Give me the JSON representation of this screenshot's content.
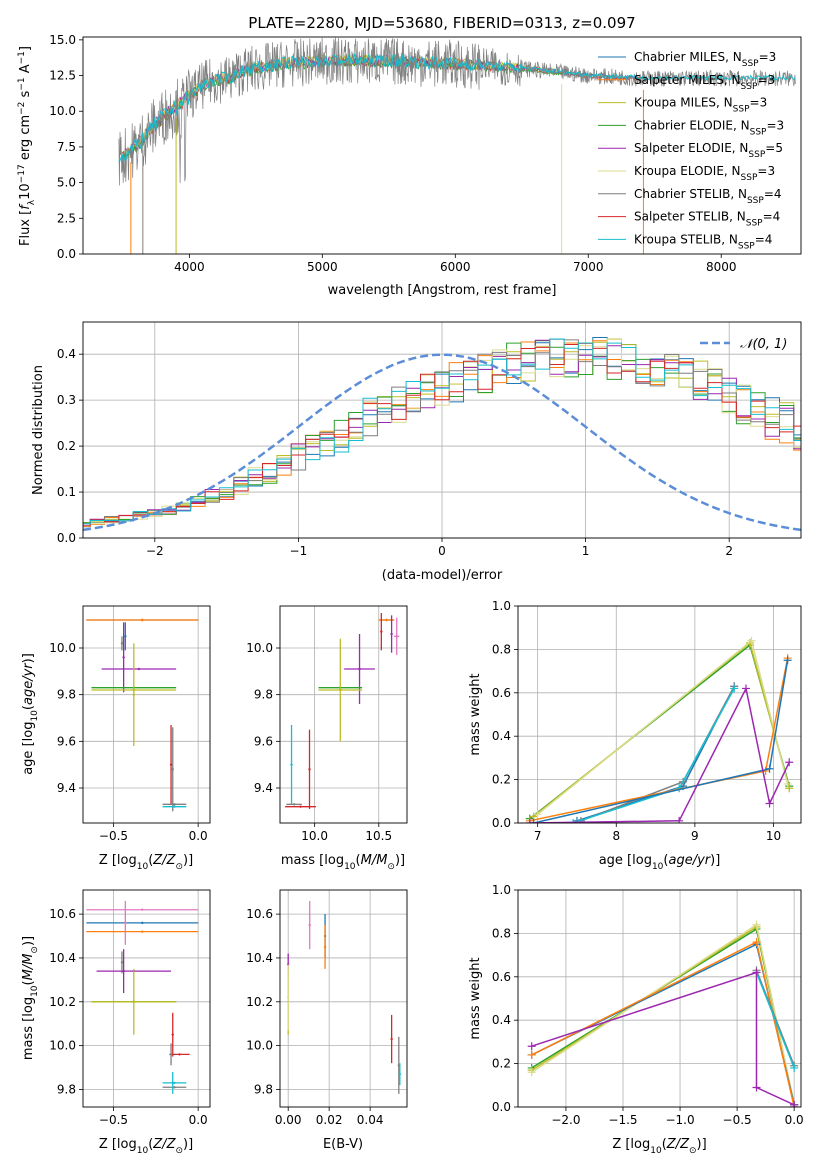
{
  "figure_title": "PLATE=2280, MJD=53680, FIBERID=0313, z=0.097",
  "colors": {
    "chabrier_miles": "#1f77b4",
    "salpeter_miles": "#ff7f0e",
    "kroupa_miles": "#bcbd22",
    "chabrier_elodie": "#2ca02c",
    "salpeter_elodie": "#9c27b0",
    "kroupa_elodie": "#dbdb8d",
    "chabrier_stelib": "#7f7f7f",
    "salpeter_stelib": "#d62728",
    "kroupa_stelib": "#17becf",
    "gaussian": "#5b8dd9"
  },
  "chart_data": [
    {
      "id": "spectrum",
      "type": "line",
      "title": "PLATE=2280, MJD=53680, FIBERID=0313, z=0.097",
      "xlabel": "wavelength [Angstrom, rest frame]",
      "ylabel": "Flux [f_λ 10^-17 erg cm^-2 s^-1 A^-1]",
      "xlim": [
        3200,
        8600
      ],
      "ylim": [
        0,
        15.2
      ],
      "xticks": [
        4000,
        5000,
        6000,
        7000,
        8000
      ],
      "yticks": [
        0.0,
        2.5,
        5.0,
        7.5,
        10.0,
        12.5,
        15.0
      ],
      "legend_position": "right",
      "legend": [
        "Chabrier MILES, N_SSP=3",
        "Salpeter MILES, N_SSP=3",
        "Kroupa MILES, N_SSP=3",
        "Chabrier ELODIE, N_SSP=3",
        "Salpeter ELODIE, N_SSP=5",
        "Kroupa ELODIE, N_SSP=3",
        "Chabrier STELIB, N_SSP=4",
        "Salpeter STELIB, N_SSP=4",
        "Kroupa STELIB, N_SSP=4"
      ],
      "model_continuum": {
        "x": [
          3500,
          3600,
          3700,
          3800,
          3900,
          4000,
          4100,
          4200,
          4300,
          4400,
          4500,
          4700,
          5000,
          5500,
          6000,
          6500,
          7000,
          7400
        ],
        "y": [
          6.8,
          7.5,
          8.6,
          9.6,
          10.3,
          11.0,
          11.8,
          12.2,
          12.3,
          12.8,
          13.0,
          13.3,
          13.5,
          13.5,
          13.3,
          13.0,
          12.5,
          12.3
        ]
      },
      "data_noise_amplitude": 1.7
    },
    {
      "id": "residuals",
      "type": "line",
      "xlabel": "(data-model)/error",
      "ylabel": "Normed distribution",
      "xlim": [
        -2.5,
        2.5
      ],
      "ylim": [
        0,
        0.47
      ],
      "xticks": [
        -2,
        -1,
        0,
        1,
        2
      ],
      "yticks": [
        0.0,
        0.1,
        0.2,
        0.3,
        0.4
      ],
      "grid": true,
      "legend_position": "top-right",
      "gaussian_label": "𝒩(0, 1)",
      "bin_width": 0.1,
      "envelope": [
        0.03,
        0.035,
        0.04,
        0.045,
        0.05,
        0.055,
        0.06,
        0.07,
        0.08,
        0.09,
        0.1,
        0.115,
        0.13,
        0.14,
        0.16,
        0.175,
        0.19,
        0.21,
        0.22,
        0.24,
        0.26,
        0.27,
        0.29,
        0.3,
        0.32,
        0.33,
        0.34,
        0.35,
        0.36,
        0.37,
        0.38,
        0.385,
        0.39,
        0.39,
        0.395,
        0.4,
        0.395,
        0.39,
        0.385,
        0.38,
        0.37,
        0.36,
        0.35,
        0.34,
        0.33,
        0.31,
        0.29,
        0.28,
        0.26,
        0.25,
        0.23,
        0.21,
        0.2,
        0.18,
        0.165,
        0.15,
        0.135,
        0.12,
        0.105,
        0.095,
        0.085,
        0.075,
        0.065,
        0.055,
        0.05,
        0.045,
        0.04,
        0.035,
        0.03,
        0.03,
        0.028,
        0.025
      ],
      "series_colors": [
        "#1f77b4",
        "#ff7f0e",
        "#bcbd22",
        "#2ca02c",
        "#9c27b0",
        "#dbdb8d",
        "#7f7f7f",
        "#d62728",
        "#17becf"
      ]
    },
    {
      "id": "age_vs_Z",
      "type": "scatter",
      "xlabel": "Z [log10(Z/Z⊙)]",
      "ylabel": "age  [log10(age/yr)]",
      "xlim": [
        -0.68,
        0.07
      ],
      "ylim": [
        9.25,
        10.18
      ],
      "xticks": [
        -0.5,
        0.0
      ],
      "yticks": [
        9.4,
        9.6,
        9.8,
        10.0
      ],
      "grid": true,
      "points": [
        {
          "x": -0.33,
          "xerr": 0.33,
          "y": 10.12,
          "yerr": 0.005,
          "color": "#7f7f7f"
        },
        {
          "x": -0.33,
          "xerr": 0.33,
          "y": 10.12,
          "yerr": 0.005,
          "color": "#ff7f0e"
        },
        {
          "x": -0.45,
          "xerr": 0.005,
          "y": 10.02,
          "yerr": 0.03,
          "color": "#7f7f7f"
        },
        {
          "x": -0.44,
          "xerr": 0.005,
          "y": 9.96,
          "yerr": 0.15,
          "color": "#9c27b0"
        },
        {
          "x": -0.43,
          "xerr": 0.005,
          "y": 10.05,
          "yerr": 0.06,
          "color": "#1f77b4"
        },
        {
          "x": -0.35,
          "xerr": 0.22,
          "y": 9.91,
          "yerr": 0.0,
          "color": "#9c27b0"
        },
        {
          "x": -0.38,
          "xerr": 0.25,
          "y": 9.83,
          "yerr": 0.0,
          "color": "#2ca02c"
        },
        {
          "x": -0.38,
          "xerr": 0.25,
          "y": 9.82,
          "yerr": 0.0,
          "color": "#bcbd22"
        },
        {
          "x": -0.38,
          "xerr": 0.005,
          "y": 9.8,
          "yerr": 0.22,
          "color": "#bcbd22"
        },
        {
          "x": -0.16,
          "xerr": 0.005,
          "y": 9.5,
          "yerr": 0.17,
          "color": "#d62728"
        },
        {
          "x": -0.15,
          "xerr": 0.005,
          "y": 9.48,
          "yerr": 0.18,
          "color": "#7f7f7f"
        },
        {
          "x": -0.14,
          "xerr": 0.07,
          "y": 9.33,
          "yerr": 0.0,
          "color": "#7f7f7f"
        },
        {
          "x": -0.14,
          "xerr": 0.07,
          "y": 9.32,
          "yerr": 0.0,
          "color": "#17becf"
        }
      ]
    },
    {
      "id": "age_vs_mass",
      "type": "scatter",
      "xlabel": "mass [log10(M/M⊙)]",
      "ylabel": "",
      "xlim": [
        9.73,
        10.72
      ],
      "ylim": [
        9.25,
        10.18
      ],
      "xticks": [
        10.0,
        10.5
      ],
      "yticks": [
        9.4,
        9.6,
        9.8,
        10.0
      ],
      "grid": true,
      "points": [
        {
          "x": 10.56,
          "xerr": 0.06,
          "y": 10.12,
          "yerr": 0.0,
          "color": "#7f7f7f"
        },
        {
          "x": 10.56,
          "xerr": 0.06,
          "y": 10.12,
          "yerr": 0.0,
          "color": "#ff7f0e"
        },
        {
          "x": 10.52,
          "xerr": 0.005,
          "y": 10.07,
          "yerr": 0.08,
          "color": "#d62728"
        },
        {
          "x": 10.6,
          "xerr": 0.005,
          "y": 10.06,
          "yerr": 0.08,
          "color": "#9c27b0"
        },
        {
          "x": 10.64,
          "xerr": 0.02,
          "y": 10.05,
          "yerr": 0.08,
          "color": "#e377c2"
        },
        {
          "x": 10.35,
          "xerr": 0.12,
          "y": 9.91,
          "yerr": 0.0,
          "color": "#9c27b0"
        },
        {
          "x": 10.35,
          "xerr": 0.005,
          "y": 9.91,
          "yerr": 0.15,
          "color": "#9c27b0"
        },
        {
          "x": 10.2,
          "xerr": 0.17,
          "y": 9.83,
          "yerr": 0.0,
          "color": "#2ca02c"
        },
        {
          "x": 10.2,
          "xerr": 0.17,
          "y": 9.82,
          "yerr": 0.0,
          "color": "#bcbd22"
        },
        {
          "x": 10.2,
          "xerr": 0.005,
          "y": 9.82,
          "yerr": 0.22,
          "color": "#bcbd22"
        },
        {
          "x": 9.96,
          "xerr": 0.005,
          "y": 9.48,
          "yerr": 0.17,
          "color": "#d62728"
        },
        {
          "x": 9.82,
          "xerr": 0.005,
          "y": 9.5,
          "yerr": 0.17,
          "color": "#17becf"
        },
        {
          "x": 9.89,
          "xerr": 0.12,
          "y": 9.32,
          "yerr": 0.0,
          "color": "#d62728"
        },
        {
          "x": 9.84,
          "xerr": 0.06,
          "y": 9.33,
          "yerr": 0.0,
          "color": "#7f7f7f"
        }
      ]
    },
    {
      "id": "mass_weight_vs_age",
      "type": "line",
      "xlabel": "age  [log10(age/yr)]",
      "ylabel": "mass weight",
      "xlim": [
        6.75,
        10.35
      ],
      "ylim": [
        0,
        1.0
      ],
      "xticks": [
        7,
        8,
        9,
        10
      ],
      "yticks": [
        0.0,
        0.2,
        0.4,
        0.6,
        0.8,
        1.0
      ],
      "grid": true,
      "series": [
        {
          "color": "#2ca02c",
          "x": [
            6.9,
            9.7,
            10.2
          ],
          "y": [
            0.02,
            0.82,
            0.17
          ]
        },
        {
          "color": "#bcbd22",
          "x": [
            6.95,
            9.7,
            10.2
          ],
          "y": [
            0.03,
            0.83,
            0.16
          ]
        },
        {
          "color": "#dbdb8d",
          "x": [
            7.0,
            9.72,
            10.18
          ],
          "y": [
            0.04,
            0.84,
            0.18
          ]
        },
        {
          "color": "#1f77b4",
          "x": [
            7.5,
            8.85,
            9.5
          ],
          "y": [
            0.01,
            0.17,
            0.63
          ]
        },
        {
          "color": "#7f7f7f",
          "x": [
            7.55,
            8.85,
            9.5
          ],
          "y": [
            0.01,
            0.19,
            0.63
          ]
        },
        {
          "color": "#17becf",
          "x": [
            7.45,
            8.8,
            9.5
          ],
          "y": [
            0.0,
            0.16,
            0.62
          ]
        },
        {
          "color": "#ff7f0e",
          "x": [
            6.9,
            9.9,
            10.18
          ],
          "y": [
            0.01,
            0.24,
            0.76
          ]
        },
        {
          "color": "#1f77b4",
          "x": [
            6.95,
            9.95,
            10.18
          ],
          "y": [
            0.0,
            0.25,
            0.75
          ]
        },
        {
          "color": "#9c27b0",
          "x": [
            6.9,
            8.8,
            9.65,
            9.95,
            10.2
          ],
          "y": [
            0.0,
            0.01,
            0.62,
            0.09,
            0.28
          ]
        }
      ]
    },
    {
      "id": "mass_vs_Z",
      "type": "scatter",
      "xlabel": "Z [log10(Z/Z⊙)]",
      "ylabel": "mass [log10(M/M⊙)]",
      "xlim": [
        -0.68,
        0.07
      ],
      "ylim": [
        9.72,
        10.71
      ],
      "xticks": [
        -0.5,
        0.0
      ],
      "yticks": [
        9.8,
        10.0,
        10.2,
        10.4,
        10.6
      ],
      "grid": true,
      "points": [
        {
          "x": -0.33,
          "xerr": 0.33,
          "y": 10.62,
          "yerr": 0.0,
          "color": "#e377c2"
        },
        {
          "x": -0.33,
          "xerr": 0.33,
          "y": 10.56,
          "yerr": 0.0,
          "color": "#1f77b4"
        },
        {
          "x": -0.33,
          "xerr": 0.33,
          "y": 10.52,
          "yerr": 0.0,
          "color": "#ff7f0e"
        },
        {
          "x": -0.43,
          "xerr": 0.005,
          "y": 10.56,
          "yerr": 0.1,
          "color": "#e377c2"
        },
        {
          "x": -0.45,
          "xerr": 0.005,
          "y": 10.38,
          "yerr": 0.05,
          "color": "#7f7f7f"
        },
        {
          "x": -0.44,
          "xerr": 0.005,
          "y": 10.34,
          "yerr": 0.1,
          "color": "#9c27b0"
        },
        {
          "x": -0.38,
          "xerr": 0.22,
          "y": 10.34,
          "yerr": 0.0,
          "color": "#9c27b0"
        },
        {
          "x": -0.38,
          "xerr": 0.25,
          "y": 10.2,
          "yerr": 0.0,
          "color": "#2ca02c"
        },
        {
          "x": -0.38,
          "xerr": 0.25,
          "y": 10.2,
          "yerr": 0.0,
          "color": "#bcbd22"
        },
        {
          "x": -0.38,
          "xerr": 0.005,
          "y": 10.2,
          "yerr": 0.15,
          "color": "#bcbd22"
        },
        {
          "x": -0.15,
          "xerr": 0.005,
          "y": 10.05,
          "yerr": 0.1,
          "color": "#d62728"
        },
        {
          "x": -0.11,
          "xerr": 0.06,
          "y": 9.96,
          "yerr": 0.0,
          "color": "#d62728"
        },
        {
          "x": -0.16,
          "xerr": 0.005,
          "y": 9.96,
          "yerr": 0.05,
          "color": "#7f7f7f"
        },
        {
          "x": -0.14,
          "xerr": 0.07,
          "y": 9.83,
          "yerr": 0.0,
          "color": "#17becf"
        },
        {
          "x": -0.14,
          "xerr": 0.07,
          "y": 9.81,
          "yerr": 0.0,
          "color": "#7f7f7f"
        },
        {
          "x": -0.15,
          "xerr": 0.005,
          "y": 9.83,
          "yerr": 0.05,
          "color": "#17becf"
        }
      ]
    },
    {
      "id": "mass_vs_ebv",
      "type": "scatter",
      "xlabel": "E(B-V)",
      "ylabel": "",
      "xlim": [
        -0.004,
        0.058
      ],
      "ylim": [
        9.72,
        10.71
      ],
      "xticks": [
        0.0,
        0.02,
        0.04
      ],
      "yticks": [
        9.8,
        10.0,
        10.2,
        10.4,
        10.6
      ],
      "grid": true,
      "points": [
        {
          "x": 0.0,
          "xerr": 0.0,
          "y": 10.37,
          "yerr": 0.05,
          "color": "#9c27b0"
        },
        {
          "x": 0.0,
          "xerr": 0.0,
          "y": 10.2,
          "yerr": 0.15,
          "color": "#bcbd22"
        },
        {
          "x": 0.0,
          "xerr": 0.0,
          "y": 10.22,
          "yerr": 0.15,
          "color": "#dbdb8d"
        },
        {
          "x": 0.0105,
          "xerr": 0.0,
          "y": 10.55,
          "yerr": 0.11,
          "color": "#e377c2"
        },
        {
          "x": 0.018,
          "xerr": 0.0,
          "y": 10.5,
          "yerr": 0.1,
          "color": "#1f77b4"
        },
        {
          "x": 0.018,
          "xerr": 0.0,
          "y": 10.45,
          "yerr": 0.1,
          "color": "#ff7f0e"
        },
        {
          "x": 0.0505,
          "xerr": 0.0,
          "y": 10.03,
          "yerr": 0.11,
          "color": "#d62728"
        },
        {
          "x": 0.054,
          "xerr": 0.0,
          "y": 9.91,
          "yerr": 0.13,
          "color": "#7f7f7f"
        },
        {
          "x": 0.0545,
          "xerr": 0.0,
          "y": 9.87,
          "yerr": 0.05,
          "color": "#17becf"
        }
      ]
    },
    {
      "id": "mass_weight_vs_Z",
      "type": "line",
      "xlabel": "Z [log10(Z/Z⊙)]",
      "ylabel": "mass weight",
      "xlim": [
        -2.42,
        0.06
      ],
      "ylim": [
        0,
        1.0
      ],
      "xticks": [
        -2.0,
        -1.5,
        -1.0,
        -0.5,
        0.0
      ],
      "yticks": [
        0.0,
        0.2,
        0.4,
        0.6,
        0.8,
        1.0
      ],
      "grid": true,
      "series": [
        {
          "color": "#2ca02c",
          "x": [
            -2.3,
            -0.33,
            0.0
          ],
          "y": [
            0.18,
            0.82,
            0.01
          ]
        },
        {
          "color": "#bcbd22",
          "x": [
            -2.3,
            -0.33,
            0.0
          ],
          "y": [
            0.17,
            0.83,
            0.01
          ]
        },
        {
          "color": "#dbdb8d",
          "x": [
            -2.3,
            -0.33,
            0.0
          ],
          "y": [
            0.16,
            0.84,
            0.01
          ]
        },
        {
          "color": "#1f77b4",
          "x": [
            -2.3,
            -0.33,
            0.0
          ],
          "y": [
            0.24,
            0.75,
            0.01
          ]
        },
        {
          "color": "#ff7f0e",
          "x": [
            -2.3,
            -0.33,
            0.0
          ],
          "y": [
            0.24,
            0.76,
            0.0
          ]
        },
        {
          "color": "#7f7f7f",
          "x": [
            -0.33,
            0.0
          ],
          "y": [
            0.63,
            0.19
          ]
        },
        {
          "color": "#17becf",
          "x": [
            -0.33,
            0.0
          ],
          "y": [
            0.62,
            0.18
          ]
        },
        {
          "color": "#9c27b0",
          "x": [
            -2.3,
            -0.33,
            -0.33,
            0.0,
            0.0
          ],
          "y": [
            0.28,
            0.62,
            0.09,
            0.01,
            0.0
          ]
        }
      ]
    }
  ]
}
